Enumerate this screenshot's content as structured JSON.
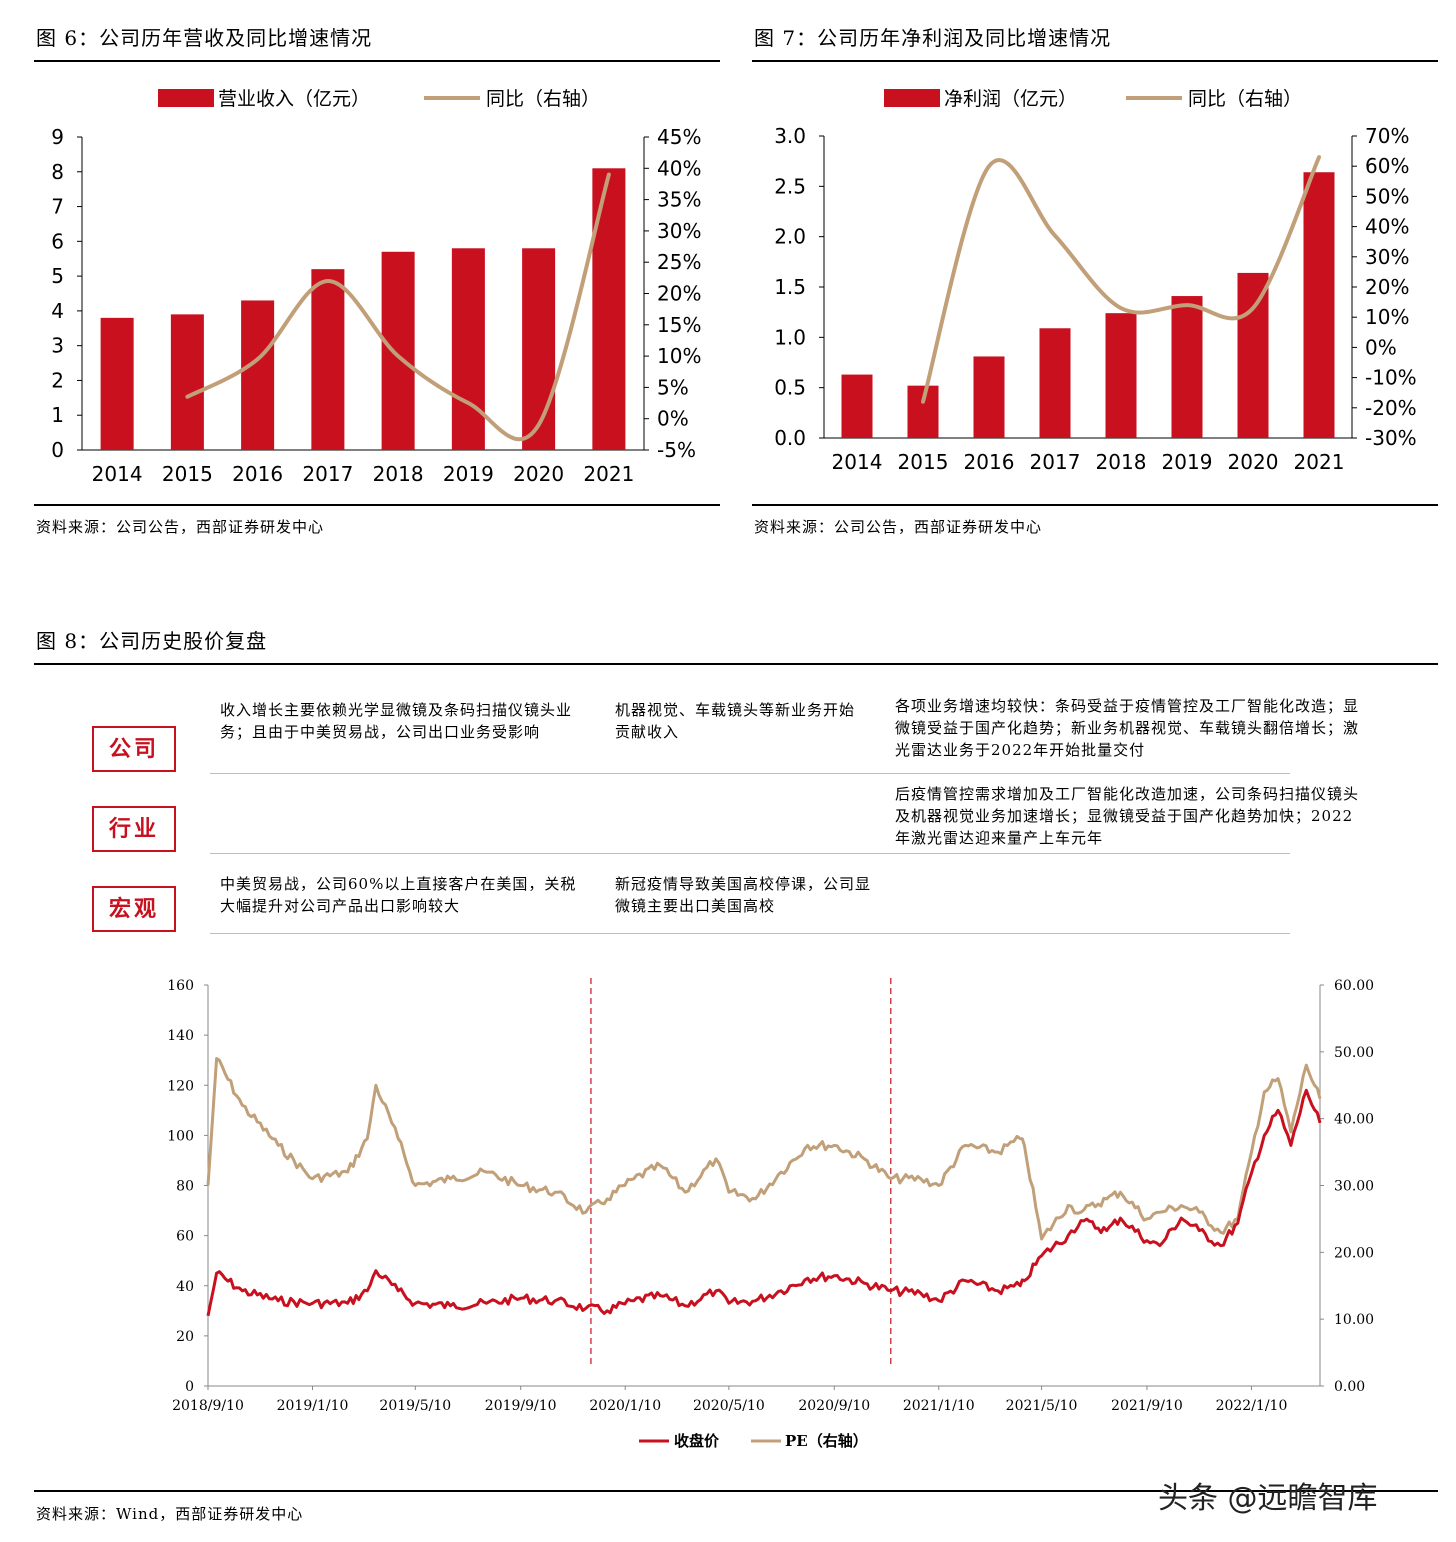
{
  "fig6": {
    "title": "图 6：公司历年营收及同比增速情况",
    "source": "资料来源：公司公告，西部证券研发中心"
  },
  "fig7": {
    "title": "图 7：公司历年净利润及同比增速情况",
    "source": "资料来源：公司公告，西部证券研发中心"
  },
  "fig8": {
    "title": "图 8：公司历史股价复盘",
    "source": "资料来源：Wind，西部证券研发中心",
    "rows": {
      "company_label": "公司",
      "industry_label": "行业",
      "macro_label": "宏观"
    },
    "notes": {
      "company_1": "收入增长主要依赖光学显微镜及条码扫描仪镜头业务；且由于中美贸易战，公司出口业务受影响",
      "company_2": "机器视觉、车载镜头等新业务开始贡献收入",
      "company_3": "各项业务增速均较快：条码受益于疫情管控及工厂智能化改造；显微镜受益于国产化趋势；新业务机器视觉、车载镜头翻倍增长；激光雷达业务于2022年开始批量交付",
      "industry_3": "后疫情管控需求增加及工厂智能化改造加速，公司条码扫描仪镜头及机器视觉业务加速增长；显微镜受益于国产化趋势加快；2022年激光雷达迎来量产上车元年",
      "macro_1": "中美贸易战，公司60%以上直接客户在美国，关税大幅提升对公司产品出口影响较大",
      "macro_2": "新冠疫情导致美国高校停课，公司显微镜主要出口美国高校"
    }
  },
  "watermark": "头条 @远瞻智库",
  "colors": {
    "bar": "#c8101f",
    "line": "#c19f78",
    "red_line": "#c8101f"
  },
  "chart_data": [
    {
      "type": "bar",
      "title": "",
      "categories": [
        "2014",
        "2015",
        "2016",
        "2017",
        "2018",
        "2019",
        "2020",
        "2021"
      ],
      "series": [
        {
          "name": "营业收入（亿元）",
          "axis": "left",
          "kind": "bar",
          "values": [
            3.8,
            3.9,
            4.3,
            5.2,
            5.7,
            5.8,
            5.8,
            8.1
          ]
        },
        {
          "name": "同比（右轴）",
          "axis": "right",
          "kind": "line",
          "unit": "%",
          "values": [
            null,
            3.5,
            9.5,
            22,
            10,
            2.5,
            -1,
            39
          ]
        }
      ],
      "ylim": [
        0,
        9
      ],
      "yticks": [
        "0",
        "1",
        "2",
        "3",
        "4",
        "5",
        "6",
        "7",
        "8",
        "9"
      ],
      "y2lim": [
        -5,
        45
      ],
      "y2ticks": [
        "-5%",
        "0%",
        "5%",
        "10%",
        "15%",
        "20%",
        "25%",
        "30%",
        "35%",
        "40%",
        "45%"
      ],
      "legend": "top"
    },
    {
      "type": "bar",
      "title": "",
      "categories": [
        "2014",
        "2015",
        "2016",
        "2017",
        "2018",
        "2019",
        "2020",
        "2021"
      ],
      "series": [
        {
          "name": "净利润（亿元）",
          "axis": "left",
          "kind": "bar",
          "values": [
            0.63,
            0.52,
            0.81,
            1.09,
            1.24,
            1.41,
            1.64,
            2.64
          ]
        },
        {
          "name": "同比（右轴）",
          "axis": "right",
          "kind": "line",
          "unit": "%",
          "values": [
            null,
            -18,
            60,
            37,
            13,
            14,
            13,
            63
          ]
        }
      ],
      "ylim": [
        0,
        3
      ],
      "yticks": [
        "0.0",
        "0.5",
        "1.0",
        "1.5",
        "2.0",
        "2.5",
        "3.0"
      ],
      "y2lim": [
        -30,
        70
      ],
      "y2ticks": [
        "-30%",
        "-20%",
        "-10%",
        "0%",
        "10%",
        "20%",
        "30%",
        "40%",
        "50%",
        "60%",
        "70%"
      ],
      "legend": "top"
    },
    {
      "type": "line",
      "title": "",
      "x_ticks": [
        "2018/9/10",
        "2019/1/10",
        "2019/5/10",
        "2019/9/10",
        "2020/1/10",
        "2020/5/10",
        "2020/9/10",
        "2021/1/10",
        "2021/5/10",
        "2021/9/10",
        "2022/1/10"
      ],
      "x_range": [
        "2018/9/10",
        "2022/3/31"
      ],
      "ylim": [
        0,
        160
      ],
      "yticks": [
        "0",
        "20",
        "40",
        "60",
        "80",
        "100",
        "120",
        "140",
        "160"
      ],
      "y2lim": [
        0,
        60
      ],
      "y2ticks": [
        "0.00",
        "10.00",
        "20.00",
        "30.00",
        "40.00",
        "50.00",
        "60.00"
      ],
      "vlines": [
        "2019/12/1",
        "2020/11/15"
      ],
      "series": [
        {
          "name": "收盘价",
          "axis": "left",
          "x": [
            "2018/9/10",
            "2018/9/20",
            "2018/10/20",
            "2018/12/1",
            "2019/1/10",
            "2019/2/20",
            "2019/3/15",
            "2019/3/25",
            "2019/4/20",
            "2019/5/10",
            "2019/6/20",
            "2019/8/1",
            "2019/9/10",
            "2019/10/20",
            "2019/11/25",
            "2019/12/20",
            "2020/1/20",
            "2020/2/20",
            "2020/3/20",
            "2020/4/25",
            "2020/5/10",
            "2020/6/10",
            "2020/7/10",
            "2020/8/10",
            "2020/9/10",
            "2020/10/15",
            "2020/11/15",
            "2020/12/20",
            "2021/1/10",
            "2021/2/10",
            "2021/3/20",
            "2021/4/15",
            "2021/4/20",
            "2021/5/10",
            "2021/6/10",
            "2021/6/25",
            "2021/7/25",
            "2021/8/10",
            "2021/9/10",
            "2021/9/25",
            "2021/10/20",
            "2021/11/10",
            "2021/12/5",
            "2021/12/25",
            "2022/1/10",
            "2022/1/25",
            "2022/2/10",
            "2022/2/25",
            "2022/3/15",
            "2022/3/31"
          ],
          "values": [
            28,
            45,
            38,
            34,
            33,
            33,
            38,
            46,
            38,
            33,
            32,
            33,
            35,
            34,
            31,
            30,
            34,
            36,
            32,
            38,
            33,
            34,
            38,
            43,
            44,
            41,
            38,
            37,
            34,
            42,
            38,
            40,
            42,
            52,
            60,
            66,
            62,
            67,
            58,
            56,
            67,
            62,
            56,
            65,
            85,
            100,
            110,
            96,
            118,
            105
          ]
        },
        {
          "name": "PE（右轴）",
          "axis": "right",
          "x": [
            "2018/9/10",
            "2018/9/20",
            "2018/10/20",
            "2018/12/1",
            "2019/1/10",
            "2019/2/20",
            "2019/3/15",
            "2019/3/25",
            "2019/4/20",
            "2019/5/10",
            "2019/6/20",
            "2019/8/1",
            "2019/9/10",
            "2019/10/20",
            "2019/11/25",
            "2019/12/20",
            "2020/1/20",
            "2020/2/20",
            "2020/3/20",
            "2020/4/25",
            "2020/5/10",
            "2020/6/10",
            "2020/7/10",
            "2020/8/10",
            "2020/9/10",
            "2020/10/15",
            "2020/11/15",
            "2020/12/20",
            "2021/1/10",
            "2021/2/10",
            "2021/3/20",
            "2021/4/15",
            "2021/4/20",
            "2021/5/10",
            "2021/6/10",
            "2021/6/25",
            "2021/7/25",
            "2021/8/10",
            "2021/9/10",
            "2021/9/25",
            "2021/10/20",
            "2021/11/10",
            "2021/12/5",
            "2021/12/25",
            "2022/1/10",
            "2022/1/25",
            "2022/2/10",
            "2022/2/25",
            "2022/3/15",
            "2022/3/31"
          ],
          "values": [
            30,
            49,
            42,
            36,
            31,
            32,
            37,
            45,
            37,
            30,
            31,
            32,
            30,
            29,
            26,
            28,
            31,
            33,
            29,
            34,
            29,
            28,
            32,
            36,
            36,
            34,
            31,
            31,
            30,
            36,
            35,
            37,
            36,
            22,
            27,
            26,
            28,
            29,
            25,
            26,
            27,
            26,
            23,
            25,
            35,
            44,
            46,
            38,
            48,
            43
          ]
        }
      ],
      "legend": "bottom"
    }
  ]
}
